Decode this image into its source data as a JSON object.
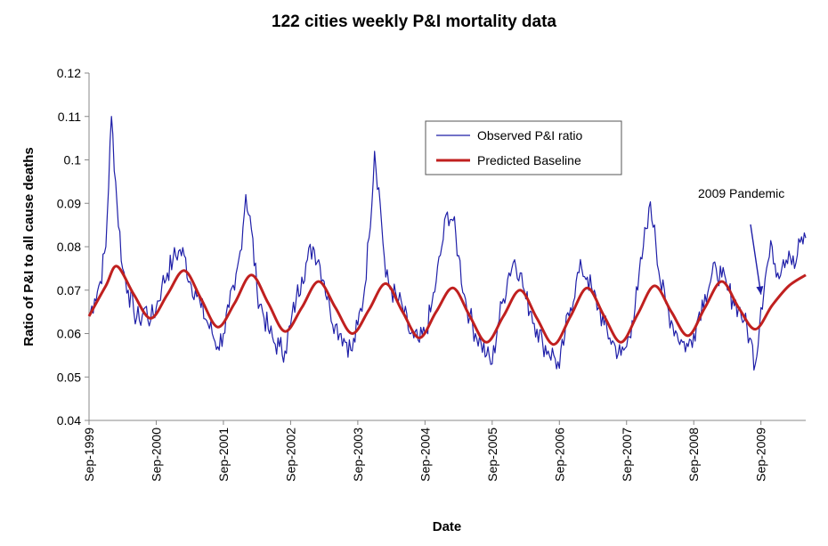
{
  "chart_data": {
    "type": "line",
    "title": "122 cities weekly P&I mortality data",
    "xlabel": "Date",
    "ylabel": "Ratio of P&I to all cause deaths",
    "ylim": [
      0.04,
      0.12
    ],
    "yticks": [
      0.04,
      0.05,
      0.06,
      0.07,
      0.08,
      0.09,
      0.1,
      0.11,
      0.12
    ],
    "ytick_labels": [
      "0.04",
      "0.05",
      "0.06",
      "0.07",
      "0.08",
      "0.09",
      "0.1",
      "0.11",
      "0.12"
    ],
    "xlim": [
      "1999-09",
      "2010-05"
    ],
    "xticks": [
      "1999-09",
      "2000-09",
      "2001-09",
      "2002-09",
      "2003-09",
      "2004-09",
      "2005-09",
      "2006-09",
      "2007-09",
      "2008-09",
      "2009-09"
    ],
    "xtick_labels": [
      "Sep-1999",
      "Sep-2000",
      "Sep-2001",
      "Sep-2002",
      "Sep-2003",
      "Sep-2004",
      "Sep-2005",
      "Sep-2006",
      "Sep-2007",
      "Sep-2008",
      "Sep-2009"
    ],
    "grid": false,
    "legend": {
      "position": "top-center"
    },
    "series": [
      {
        "name": "Observed P&I ratio",
        "color": "#1f1fa8",
        "style": "thin",
        "points": [
          [
            "1999-09",
            0.064
          ],
          [
            "1999-10",
            0.068
          ],
          [
            "1999-11",
            0.072
          ],
          [
            "1999-12",
            0.08
          ],
          [
            "2000-01",
            0.11
          ],
          [
            "2000-02",
            0.09
          ],
          [
            "2000-03",
            0.075
          ],
          [
            "2000-04",
            0.07
          ],
          [
            "2000-05",
            0.065
          ],
          [
            "2000-06",
            0.063
          ],
          [
            "2000-07",
            0.066
          ],
          [
            "2000-08",
            0.063
          ],
          [
            "2000-09",
            0.066
          ],
          [
            "2000-10",
            0.071
          ],
          [
            "2000-11",
            0.074
          ],
          [
            "2000-12",
            0.077
          ],
          [
            "2001-01",
            0.079
          ],
          [
            "2001-02",
            0.078
          ],
          [
            "2001-03",
            0.072
          ],
          [
            "2001-04",
            0.07
          ],
          [
            "2001-05",
            0.066
          ],
          [
            "2001-06",
            0.063
          ],
          [
            "2001-07",
            0.06
          ],
          [
            "2001-08",
            0.057
          ],
          [
            "2001-09",
            0.06
          ],
          [
            "2001-10",
            0.066
          ],
          [
            "2001-11",
            0.07
          ],
          [
            "2001-12",
            0.079
          ],
          [
            "2002-01",
            0.092
          ],
          [
            "2002-02",
            0.084
          ],
          [
            "2002-03",
            0.07
          ],
          [
            "2002-04",
            0.065
          ],
          [
            "2002-05",
            0.061
          ],
          [
            "2002-06",
            0.058
          ],
          [
            "2002-07",
            0.057
          ],
          [
            "2002-08",
            0.056
          ],
          [
            "2002-09",
            0.062
          ],
          [
            "2002-10",
            0.068
          ],
          [
            "2002-11",
            0.073
          ],
          [
            "2002-12",
            0.077
          ],
          [
            "2003-01",
            0.08
          ],
          [
            "2003-02",
            0.077
          ],
          [
            "2003-03",
            0.072
          ],
          [
            "2003-04",
            0.066
          ],
          [
            "2003-05",
            0.062
          ],
          [
            "2003-06",
            0.06
          ],
          [
            "2003-07",
            0.058
          ],
          [
            "2003-08",
            0.056
          ],
          [
            "2003-09",
            0.062
          ],
          [
            "2003-10",
            0.068
          ],
          [
            "2003-11",
            0.082
          ],
          [
            "2003-12",
            0.102
          ],
          [
            "2004-01",
            0.09
          ],
          [
            "2004-02",
            0.073
          ],
          [
            "2004-03",
            0.07
          ],
          [
            "2004-04",
            0.068
          ],
          [
            "2004-05",
            0.066
          ],
          [
            "2004-06",
            0.061
          ],
          [
            "2004-07",
            0.059
          ],
          [
            "2004-08",
            0.058
          ],
          [
            "2004-09",
            0.06
          ],
          [
            "2004-10",
            0.065
          ],
          [
            "2004-11",
            0.072
          ],
          [
            "2004-12",
            0.08
          ],
          [
            "2005-01",
            0.088
          ],
          [
            "2005-02",
            0.086
          ],
          [
            "2005-03",
            0.078
          ],
          [
            "2005-04",
            0.069
          ],
          [
            "2005-05",
            0.064
          ],
          [
            "2005-06",
            0.06
          ],
          [
            "2005-07",
            0.058
          ],
          [
            "2005-08",
            0.055
          ],
          [
            "2005-09",
            0.053
          ],
          [
            "2005-10",
            0.062
          ],
          [
            "2005-11",
            0.068
          ],
          [
            "2005-12",
            0.074
          ],
          [
            "2006-01",
            0.077
          ],
          [
            "2006-02",
            0.074
          ],
          [
            "2006-03",
            0.068
          ],
          [
            "2006-04",
            0.065
          ],
          [
            "2006-05",
            0.061
          ],
          [
            "2006-06",
            0.058
          ],
          [
            "2006-07",
            0.056
          ],
          [
            "2006-08",
            0.055
          ],
          [
            "2006-09",
            0.052
          ],
          [
            "2006-10",
            0.06
          ],
          [
            "2006-11",
            0.066
          ],
          [
            "2006-12",
            0.072
          ],
          [
            "2007-01",
            0.075
          ],
          [
            "2007-02",
            0.073
          ],
          [
            "2007-03",
            0.069
          ],
          [
            "2007-04",
            0.066
          ],
          [
            "2007-05",
            0.062
          ],
          [
            "2007-06",
            0.059
          ],
          [
            "2007-07",
            0.057
          ],
          [
            "2007-08",
            0.055
          ],
          [
            "2007-09",
            0.057
          ],
          [
            "2007-10",
            0.063
          ],
          [
            "2007-11",
            0.07
          ],
          [
            "2007-12",
            0.08
          ],
          [
            "2008-01",
            0.089
          ],
          [
            "2008-02",
            0.085
          ],
          [
            "2008-03",
            0.072
          ],
          [
            "2008-04",
            0.067
          ],
          [
            "2008-05",
            0.063
          ],
          [
            "2008-06",
            0.06
          ],
          [
            "2008-07",
            0.058
          ],
          [
            "2008-08",
            0.057
          ],
          [
            "2008-09",
            0.06
          ],
          [
            "2008-10",
            0.065
          ],
          [
            "2008-11",
            0.069
          ],
          [
            "2008-12",
            0.072
          ],
          [
            "2009-01",
            0.075
          ],
          [
            "2009-02",
            0.073
          ],
          [
            "2009-03",
            0.07
          ],
          [
            "2009-04",
            0.068
          ],
          [
            "2009-05",
            0.066
          ],
          [
            "2009-06",
            0.063
          ],
          [
            "2009-07",
            0.059
          ],
          [
            "2009-08",
            0.053
          ],
          [
            "2009-09",
            0.066
          ],
          [
            "2009-10",
            0.075
          ],
          [
            "2009-11",
            0.08
          ],
          [
            "2009-12",
            0.074
          ],
          [
            "2010-01",
            0.077
          ],
          [
            "2010-02",
            0.079
          ],
          [
            "2010-03",
            0.075
          ],
          [
            "2010-04",
            0.081
          ],
          [
            "2010-05",
            0.082
          ]
        ]
      },
      {
        "name": "Predicted Baseline",
        "color": "#c0201f",
        "style": "thick",
        "points": [
          [
            "1999-09",
            0.064
          ],
          [
            "1999-12",
            0.071
          ],
          [
            "2000-02",
            0.0755
          ],
          [
            "2000-05",
            0.069
          ],
          [
            "2000-08",
            0.0635
          ],
          [
            "2000-11",
            0.069
          ],
          [
            "2001-02",
            0.0745
          ],
          [
            "2001-05",
            0.068
          ],
          [
            "2001-08",
            0.0615
          ],
          [
            "2001-11",
            0.067
          ],
          [
            "2002-02",
            0.0735
          ],
          [
            "2002-05",
            0.067
          ],
          [
            "2002-08",
            0.0605
          ],
          [
            "2002-11",
            0.066
          ],
          [
            "2003-02",
            0.072
          ],
          [
            "2003-05",
            0.066
          ],
          [
            "2003-08",
            0.06
          ],
          [
            "2003-11",
            0.0655
          ],
          [
            "2004-02",
            0.0715
          ],
          [
            "2004-05",
            0.065
          ],
          [
            "2004-08",
            0.059
          ],
          [
            "2004-11",
            0.065
          ],
          [
            "2005-02",
            0.0705
          ],
          [
            "2005-05",
            0.064
          ],
          [
            "2005-08",
            0.058
          ],
          [
            "2005-11",
            0.064
          ],
          [
            "2006-02",
            0.07
          ],
          [
            "2006-05",
            0.0635
          ],
          [
            "2006-08",
            0.0575
          ],
          [
            "2006-11",
            0.064
          ],
          [
            "2007-02",
            0.0705
          ],
          [
            "2007-05",
            0.064
          ],
          [
            "2007-08",
            0.058
          ],
          [
            "2007-11",
            0.0645
          ],
          [
            "2008-02",
            0.071
          ],
          [
            "2008-05",
            0.065
          ],
          [
            "2008-08",
            0.0595
          ],
          [
            "2008-11",
            0.066
          ],
          [
            "2009-02",
            0.072
          ],
          [
            "2009-05",
            0.066
          ],
          [
            "2009-08",
            0.061
          ],
          [
            "2009-11",
            0.0665
          ],
          [
            "2010-02",
            0.071
          ],
          [
            "2010-05",
            0.0735
          ]
        ]
      }
    ],
    "annotations": [
      {
        "text": "2009 Pandemic",
        "arrow_to": [
          "2009-09",
          0.069
        ]
      }
    ]
  }
}
